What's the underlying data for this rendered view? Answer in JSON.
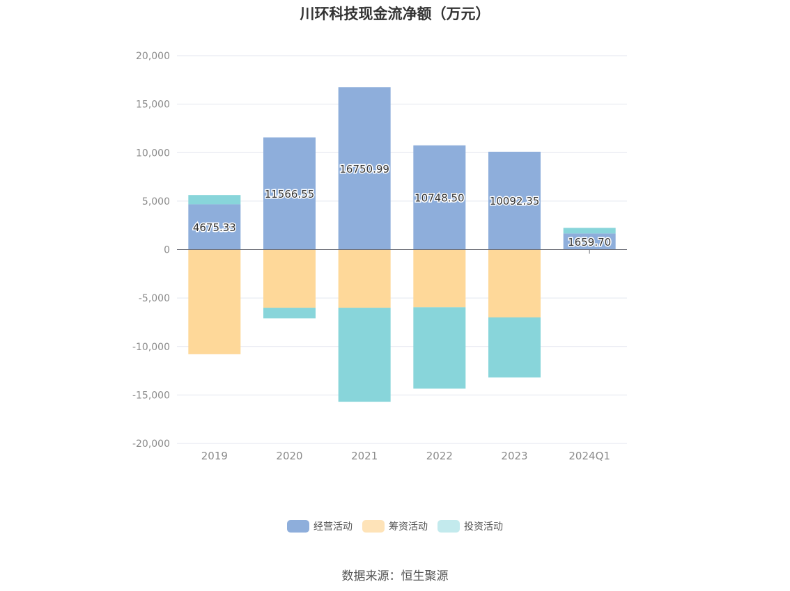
{
  "chart_data": {
    "type": "bar",
    "stacked": true,
    "title": "川环科技现金流净额（万元）",
    "categories": [
      "2019",
      "2020",
      "2021",
      "2022",
      "2023",
      "2024Q1"
    ],
    "series": [
      {
        "name": "经营活动",
        "color": "#8eaedb",
        "values": [
          4675.33,
          11566.55,
          16750.99,
          10748.5,
          10092.35,
          1659.7
        ]
      },
      {
        "name": "筹资活动",
        "color": "#fed899",
        "values": [
          -10800,
          -6000,
          -6000,
          -5950,
          -7000,
          0
        ]
      },
      {
        "name": "投资活动",
        "color": "#88d5da",
        "values": [
          950,
          -1100,
          -9700,
          -8400,
          -6200,
          580
        ]
      }
    ],
    "data_labels": [
      "4675.33",
      "11566.55",
      "16750.99",
      "10748.50",
      "10092.35",
      "1659.70"
    ],
    "ylim": [
      -20000,
      20000
    ],
    "yticks": [
      20000,
      15000,
      10000,
      5000,
      0,
      -5000,
      -10000,
      -15000,
      -20000
    ],
    "ytick_labels": [
      "20,000",
      "15,000",
      "10,000",
      "5,000",
      "0",
      "-5,000",
      "-10,000",
      "-15,000",
      "-20,000"
    ],
    "grid": true,
    "legend_position": "bottom-center",
    "legend_colors": [
      "#8eaedb",
      "#fee3b8",
      "#c3eaed"
    ],
    "source": "数据来源：恒生聚源"
  }
}
